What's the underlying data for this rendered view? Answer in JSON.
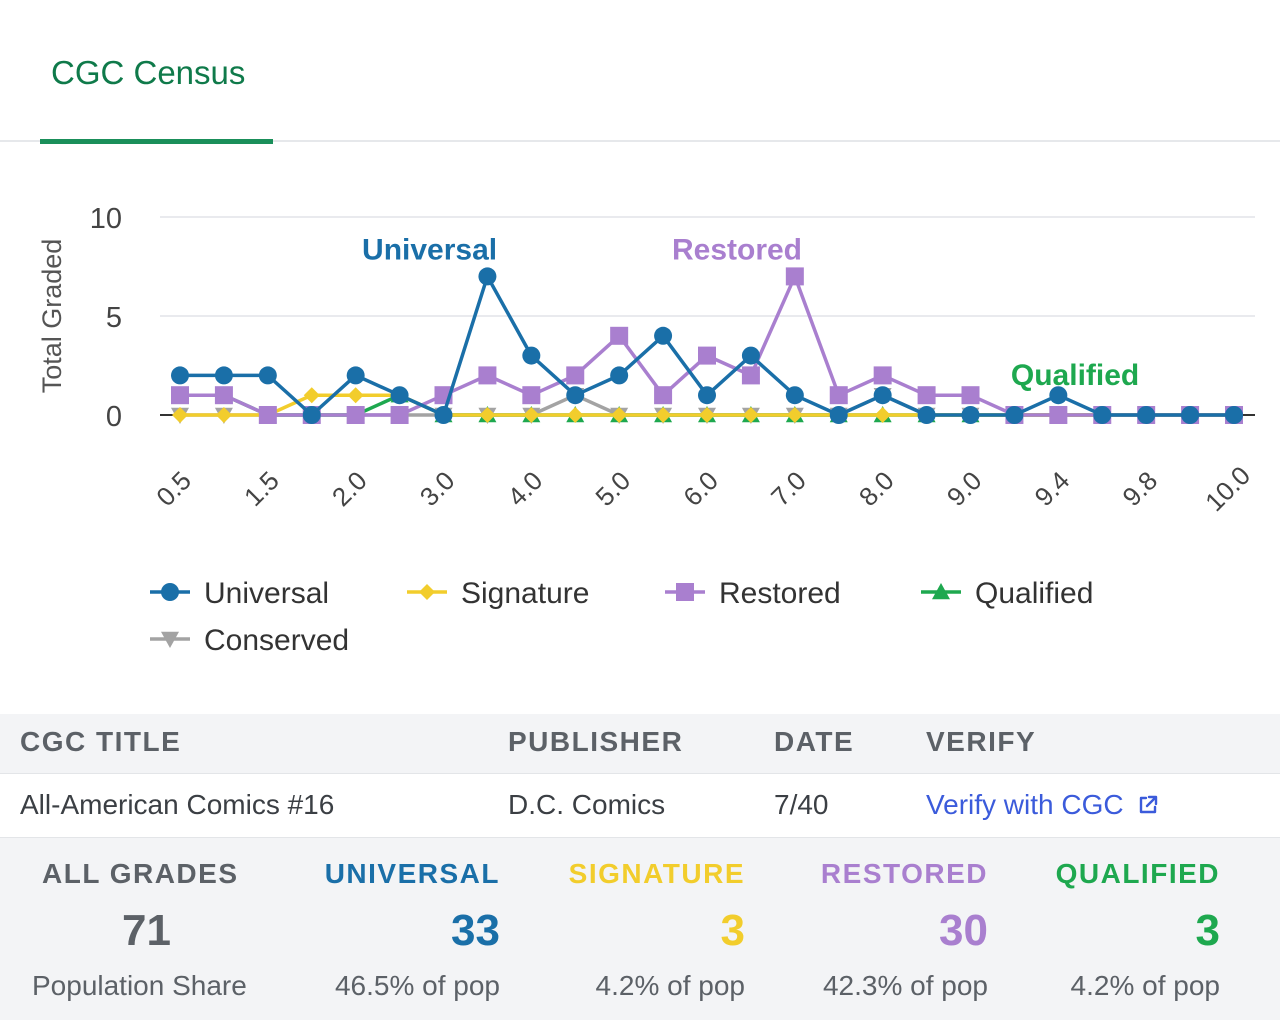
{
  "tab": {
    "label": "CGC Census"
  },
  "colors": {
    "universal": "#1a6fa8",
    "signature": "#f2cd2c",
    "restored": "#a97fcf",
    "qualified": "#1ea84f",
    "conserved": "#a3a3a3",
    "accent": "#1a8f5a"
  },
  "chart_data": {
    "type": "line",
    "ylabel": "Total Graded",
    "xlabel": "",
    "ylim": [
      0,
      10
    ],
    "yticks": [
      0,
      5,
      10
    ],
    "x": [
      0.5,
      1.0,
      1.5,
      1.8,
      2.0,
      2.5,
      3.0,
      3.5,
      4.0,
      4.5,
      5.0,
      5.5,
      6.0,
      6.5,
      7.0,
      7.5,
      8.0,
      8.5,
      9.0,
      9.2,
      9.4,
      9.6,
      9.8,
      9.9,
      10.0
    ],
    "xtick_labels": [
      "0.5",
      "1.5",
      "2.0",
      "3.0",
      "4.0",
      "5.0",
      "6.0",
      "7.0",
      "8.0",
      "9.0",
      "9.4",
      "9.8",
      "10.0"
    ],
    "xtick_indices": [
      0,
      2,
      4,
      6,
      8,
      10,
      12,
      14,
      16,
      18,
      20,
      22,
      24
    ],
    "grid": true,
    "legend": "bottom",
    "series": [
      {
        "name": "Universal",
        "key": "universal",
        "marker": "circle",
        "label": "Universal",
        "label_index": 5,
        "values": [
          2,
          2,
          2,
          0,
          2,
          1,
          0,
          7,
          3,
          1,
          2,
          4,
          1,
          3,
          1,
          0,
          1,
          0,
          0,
          0,
          1,
          0,
          0,
          0,
          0
        ]
      },
      {
        "name": "Signature",
        "key": "signature",
        "marker": "diamond",
        "values": [
          0,
          0,
          0,
          1,
          1,
          1,
          0,
          0,
          0,
          0,
          0,
          0,
          0,
          0,
          0,
          0,
          0,
          0,
          0,
          0,
          0,
          0,
          0,
          0,
          0
        ]
      },
      {
        "name": "Restored",
        "key": "restored",
        "marker": "square",
        "label": "Restored",
        "label_index": 12,
        "values": [
          1,
          1,
          0,
          0,
          0,
          0,
          1,
          2,
          1,
          2,
          4,
          1,
          3,
          2,
          7,
          1,
          2,
          1,
          1,
          0,
          0,
          0,
          0,
          0,
          0
        ]
      },
      {
        "name": "Qualified",
        "key": "qualified",
        "marker": "triangle",
        "label": "Qualified",
        "label_index": 23,
        "values": [
          1,
          1,
          0,
          0,
          0,
          1,
          0,
          0,
          0,
          0,
          0,
          0,
          0,
          0,
          0,
          0,
          0,
          0,
          0,
          0,
          0,
          0,
          0,
          0,
          0
        ]
      },
      {
        "name": "Conserved",
        "key": "conserved",
        "marker": "triangle-down",
        "values": [
          0,
          0,
          0,
          0,
          0,
          0,
          0,
          0,
          0,
          1,
          0,
          0,
          0,
          0,
          0,
          0,
          1,
          0,
          0,
          0,
          0,
          0,
          0,
          0,
          0
        ]
      }
    ]
  },
  "table": {
    "headers": {
      "title": "CGC TITLE",
      "publisher": "PUBLISHER",
      "date": "DATE",
      "verify": "VERIFY"
    },
    "row": {
      "title": "All-American Comics #16",
      "publisher": "D.C. Comics",
      "date": "7/40",
      "verify": "Verify with CGC"
    }
  },
  "stats": {
    "all": {
      "label": "ALL GRADES",
      "value": "71",
      "sub": "Population Share"
    },
    "universal": {
      "label": "UNIVERSAL",
      "value": "33",
      "sub": "46.5% of pop"
    },
    "signature": {
      "label": "SIGNATURE",
      "value": "3",
      "sub": "4.2% of pop"
    },
    "restored": {
      "label": "RESTORED",
      "value": "30",
      "sub": "42.3% of pop"
    },
    "qualified": {
      "label": "QUALIFIED",
      "value": "3",
      "sub": "4.2% of pop"
    }
  }
}
